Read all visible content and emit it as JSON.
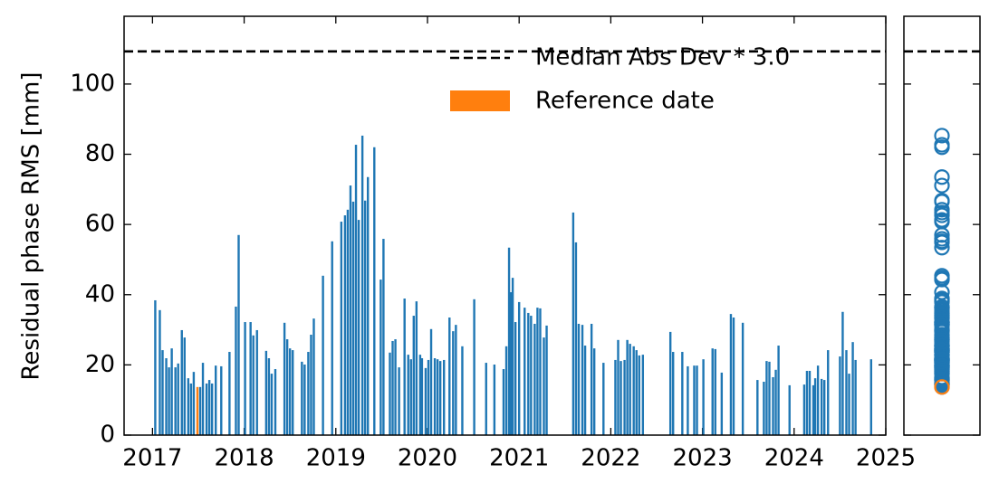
{
  "chart_data": {
    "type": "bar",
    "ylabel": "Residual phase RMS [mm]",
    "xlim": [
      2016.69,
      2025.0
    ],
    "xticks": [
      2017,
      2018,
      2019,
      2020,
      2021,
      2022,
      2023,
      2024,
      2025
    ],
    "ylim": [
      0,
      119.3
    ],
    "yticks": [
      0,
      20,
      40,
      60,
      80,
      100
    ],
    "grid": false,
    "legend": "upper right",
    "threshold": {
      "label": "Median Abs Dev * 3.0",
      "value": 109.3,
      "color": "#000000"
    },
    "series": [
      {
        "color": "#1f77b4",
        "x": [
          2017.03,
          2017.08,
          2017.11,
          2017.15,
          2017.18,
          2017.21,
          2017.25,
          2017.28,
          2017.32,
          2017.35,
          2017.39,
          2017.42,
          2017.45,
          2017.52,
          2017.55,
          2017.59,
          2017.62,
          2017.65,
          2017.69,
          2017.75,
          2017.84,
          2017.91,
          2017.94,
          2018.01,
          2018.07,
          2018.1,
          2018.14,
          2018.24,
          2018.27,
          2018.3,
          2018.34,
          2018.44,
          2018.47,
          2018.5,
          2018.53,
          2018.63,
          2018.66,
          2018.7,
          2018.73,
          2018.76,
          2018.86,
          2018.96,
          2019.06,
          2019.1,
          2019.13,
          2019.16,
          2019.19,
          2019.22,
          2019.25,
          2019.29,
          2019.32,
          2019.35,
          2019.42,
          2019.49,
          2019.52,
          2019.59,
          2019.62,
          2019.65,
          2019.69,
          2019.75,
          2019.79,
          2019.82,
          2019.85,
          2019.88,
          2019.92,
          2019.94,
          2019.98,
          2020.01,
          2020.04,
          2020.08,
          2020.11,
          2020.14,
          2020.18,
          2020.24,
          2020.28,
          2020.31,
          2020.38,
          2020.51,
          2020.64,
          2020.73,
          2020.83,
          2020.86,
          2020.89,
          2020.91,
          2020.93,
          2020.96,
          2021.0,
          2021.06,
          2021.1,
          2021.13,
          2021.17,
          2021.2,
          2021.23,
          2021.27,
          2021.3,
          2021.59,
          2021.62,
          2021.65,
          2021.69,
          2021.72,
          2021.79,
          2021.82,
          2021.92,
          2022.05,
          2022.08,
          2022.11,
          2022.15,
          2022.18,
          2022.21,
          2022.25,
          2022.28,
          2022.31,
          2022.35,
          2022.65,
          2022.68,
          2022.78,
          2022.84,
          2022.91,
          2022.94,
          2023.01,
          2023.11,
          2023.14,
          2023.21,
          2023.31,
          2023.34,
          2023.44,
          2023.6,
          2023.67,
          2023.7,
          2023.73,
          2023.77,
          2023.8,
          2023.83,
          2023.95,
          2024.11,
          2024.14,
          2024.17,
          2024.21,
          2024.23,
          2024.26,
          2024.3,
          2024.33,
          2024.37,
          2024.5,
          2024.53,
          2024.57,
          2024.6,
          2024.64,
          2024.67,
          2024.84
        ],
        "values": [
          38.4,
          35.6,
          24.2,
          21.9,
          19.3,
          24.7,
          19.3,
          20.4,
          29.9,
          27.8,
          16.2,
          14.7,
          18.0,
          13.7,
          20.6,
          14.7,
          15.7,
          14.7,
          19.8,
          19.6,
          23.7,
          36.6,
          57.0,
          32.2,
          32.2,
          28.4,
          29.9,
          24.0,
          21.9,
          17.5,
          18.8,
          32.0,
          27.3,
          24.7,
          24.2,
          20.9,
          20.1,
          23.7,
          28.6,
          33.2,
          45.4,
          55.2,
          60.8,
          62.6,
          64.2,
          71.1,
          66.5,
          82.7,
          61.3,
          85.3,
          66.8,
          73.5,
          82.0,
          44.3,
          55.9,
          23.5,
          26.8,
          27.3,
          19.3,
          38.9,
          22.9,
          21.6,
          34.0,
          38.1,
          22.9,
          21.9,
          19.1,
          21.4,
          30.2,
          21.9,
          21.6,
          21.1,
          21.4,
          33.5,
          29.6,
          31.4,
          25.3,
          38.7,
          20.6,
          20.1,
          18.8,
          25.3,
          53.4,
          40.7,
          44.8,
          32.2,
          37.9,
          36.3,
          34.8,
          34.0,
          31.7,
          36.3,
          36.1,
          27.8,
          31.2,
          63.4,
          54.9,
          31.7,
          31.4,
          25.5,
          31.7,
          24.7,
          20.6,
          21.4,
          27.1,
          21.1,
          21.4,
          27.1,
          26.0,
          25.3,
          24.2,
          22.7,
          22.9,
          29.4,
          23.7,
          23.7,
          19.6,
          19.8,
          19.8,
          21.6,
          24.7,
          24.5,
          17.8,
          34.5,
          33.5,
          32.0,
          15.7,
          15.2,
          21.1,
          20.9,
          16.5,
          18.6,
          25.5,
          14.2,
          14.4,
          18.3,
          18.3,
          14.2,
          16.2,
          19.8,
          16.0,
          15.7,
          24.2,
          22.4,
          35.1,
          24.2,
          17.5,
          26.5,
          21.4,
          21.6
        ]
      },
      {
        "name": "Reference date",
        "color": "#ff7f0e",
        "x": [
          2017.49
        ],
        "values": [
          13.7
        ]
      }
    ]
  }
}
